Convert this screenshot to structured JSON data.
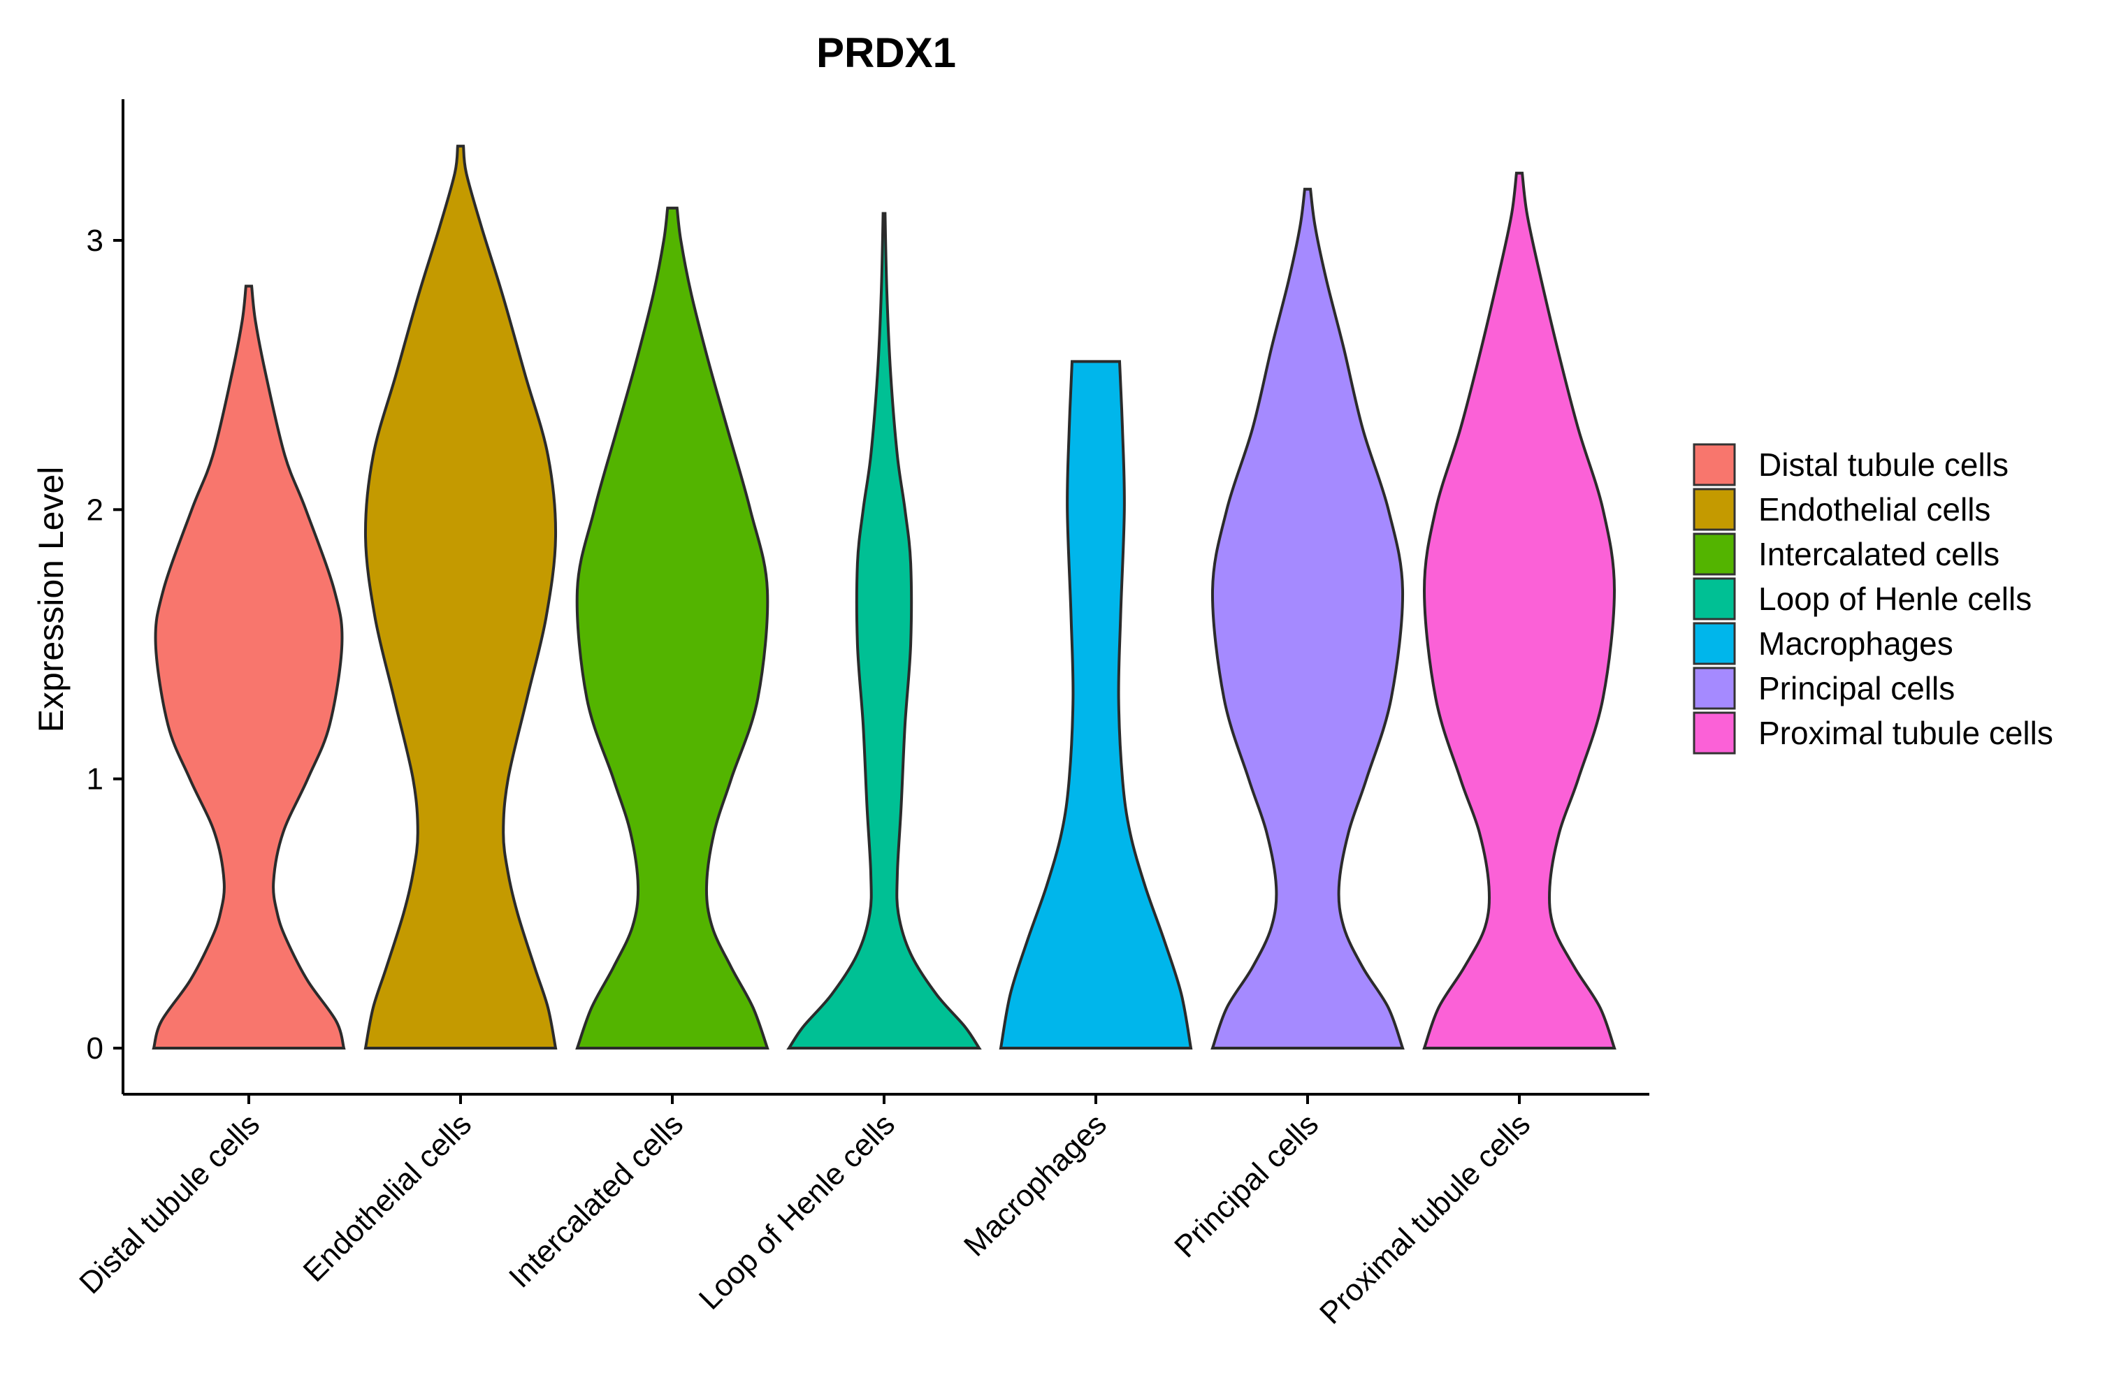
{
  "chart_data": {
    "type": "violin",
    "title": "PRDX1",
    "xlabel": "",
    "ylabel": "Expression Level",
    "ylim": [
      -0.17,
      3.52
    ],
    "yticks": [
      0,
      1,
      2,
      3
    ],
    "grid": false,
    "legend_position": "right",
    "categories": [
      "Distal tubule cells",
      "Endothelial cells",
      "Intercalated cells",
      "Loop of Henle cells",
      "Macrophages",
      "Principal cells",
      "Proximal tubule cells"
    ],
    "series": [
      {
        "name": "Distal tubule cells",
        "color": "#F8766D",
        "max": 2.83,
        "density": [
          [
            0,
            1.0
          ],
          [
            0.1,
            0.92
          ],
          [
            0.25,
            0.62
          ],
          [
            0.4,
            0.4
          ],
          [
            0.5,
            0.3
          ],
          [
            0.62,
            0.26
          ],
          [
            0.8,
            0.36
          ],
          [
            1.0,
            0.62
          ],
          [
            1.2,
            0.85
          ],
          [
            1.5,
            0.98
          ],
          [
            1.7,
            0.9
          ],
          [
            2.0,
            0.6
          ],
          [
            2.2,
            0.38
          ],
          [
            2.5,
            0.18
          ],
          [
            2.7,
            0.07
          ],
          [
            2.83,
            0.03
          ]
        ]
      },
      {
        "name": "Endothelial cells",
        "color": "#C49A00",
        "max": 3.35,
        "density": [
          [
            0,
            1.0
          ],
          [
            0.15,
            0.92
          ],
          [
            0.3,
            0.78
          ],
          [
            0.5,
            0.6
          ],
          [
            0.65,
            0.5
          ],
          [
            0.8,
            0.45
          ],
          [
            1.0,
            0.5
          ],
          [
            1.3,
            0.7
          ],
          [
            1.6,
            0.9
          ],
          [
            1.9,
            1.0
          ],
          [
            2.2,
            0.92
          ],
          [
            2.5,
            0.68
          ],
          [
            2.8,
            0.44
          ],
          [
            3.05,
            0.22
          ],
          [
            3.25,
            0.06
          ],
          [
            3.35,
            0.03
          ]
        ]
      },
      {
        "name": "Intercalated cells",
        "color": "#53B400",
        "max": 3.12,
        "density": [
          [
            0,
            1.0
          ],
          [
            0.15,
            0.85
          ],
          [
            0.3,
            0.62
          ],
          [
            0.45,
            0.42
          ],
          [
            0.6,
            0.36
          ],
          [
            0.8,
            0.44
          ],
          [
            1.0,
            0.62
          ],
          [
            1.3,
            0.9
          ],
          [
            1.7,
            1.0
          ],
          [
            2.0,
            0.82
          ],
          [
            2.3,
            0.58
          ],
          [
            2.55,
            0.38
          ],
          [
            2.8,
            0.2
          ],
          [
            3.0,
            0.09
          ],
          [
            3.12,
            0.05
          ]
        ]
      },
      {
        "name": "Loop of Henle cells",
        "color": "#00C094",
        "max": 3.1,
        "density": [
          [
            0,
            1.0
          ],
          [
            0.08,
            0.85
          ],
          [
            0.2,
            0.55
          ],
          [
            0.35,
            0.28
          ],
          [
            0.5,
            0.15
          ],
          [
            0.65,
            0.14
          ],
          [
            0.9,
            0.18
          ],
          [
            1.2,
            0.22
          ],
          [
            1.5,
            0.28
          ],
          [
            1.8,
            0.28
          ],
          [
            2.0,
            0.22
          ],
          [
            2.2,
            0.14
          ],
          [
            2.5,
            0.07
          ],
          [
            2.8,
            0.03
          ],
          [
            3.1,
            0.01
          ]
        ]
      },
      {
        "name": "Macrophages",
        "color": "#00B6EB",
        "max": 2.55,
        "density": [
          [
            0,
            1.0
          ],
          [
            0.2,
            0.9
          ],
          [
            0.4,
            0.72
          ],
          [
            0.6,
            0.52
          ],
          [
            0.8,
            0.36
          ],
          [
            1.0,
            0.28
          ],
          [
            1.3,
            0.24
          ],
          [
            1.6,
            0.26
          ],
          [
            2.0,
            0.3
          ],
          [
            2.3,
            0.28
          ],
          [
            2.55,
            0.25
          ]
        ]
      },
      {
        "name": "Principal cells",
        "color": "#A58AFF",
        "max": 3.19,
        "density": [
          [
            0,
            1.0
          ],
          [
            0.15,
            0.85
          ],
          [
            0.3,
            0.58
          ],
          [
            0.45,
            0.38
          ],
          [
            0.6,
            0.33
          ],
          [
            0.8,
            0.43
          ],
          [
            1.0,
            0.62
          ],
          [
            1.3,
            0.88
          ],
          [
            1.7,
            1.0
          ],
          [
            2.0,
            0.85
          ],
          [
            2.3,
            0.58
          ],
          [
            2.6,
            0.38
          ],
          [
            2.85,
            0.2
          ],
          [
            3.05,
            0.08
          ],
          [
            3.19,
            0.03
          ]
        ]
      },
      {
        "name": "Proximal tubule cells",
        "color": "#FB61D7",
        "max": 3.25,
        "density": [
          [
            0,
            1.0
          ],
          [
            0.15,
            0.85
          ],
          [
            0.3,
            0.58
          ],
          [
            0.45,
            0.36
          ],
          [
            0.6,
            0.32
          ],
          [
            0.8,
            0.42
          ],
          [
            1.0,
            0.62
          ],
          [
            1.3,
            0.88
          ],
          [
            1.7,
            1.0
          ],
          [
            2.0,
            0.88
          ],
          [
            2.3,
            0.62
          ],
          [
            2.6,
            0.4
          ],
          [
            2.9,
            0.2
          ],
          [
            3.1,
            0.08
          ],
          [
            3.25,
            0.03
          ]
        ]
      }
    ]
  }
}
